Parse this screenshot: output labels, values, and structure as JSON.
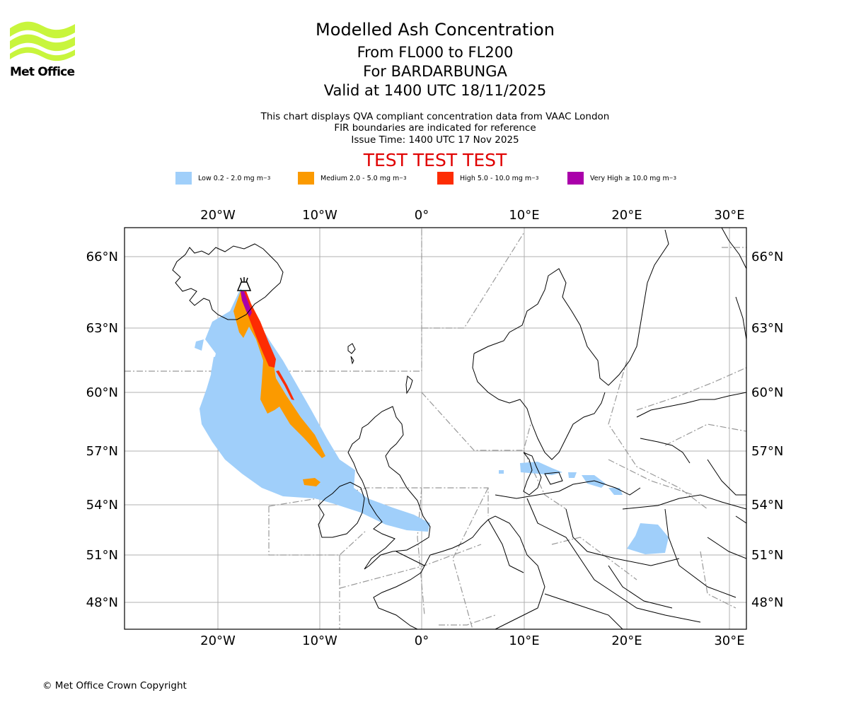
{
  "header": {
    "title": "Modelled Ash Concentration",
    "flight_levels": "From FL000 to FL200",
    "volcano": "For BARDARBUNGA",
    "valid_time": "Valid at 1400 UTC 18/11/2025",
    "info_line1": "This chart displays QVA compliant concentration data from VAAC London",
    "info_line2": "FIR boundaries are indicated for reference",
    "issue_time": "Issue Time: 1400 UTC 17 Nov 2025",
    "test_banner": "TEST TEST TEST"
  },
  "logo": {
    "name": "Met Office"
  },
  "legend": [
    {
      "label": "Low 0.2 - 2.0 mg m",
      "unit_sup": "−3",
      "color": "#a0cffa"
    },
    {
      "label": "Medium 2.0 - 5.0 mg m",
      "unit_sup": "−3",
      "color": "#fb9a00"
    },
    {
      "label": "High 5.0 - 10.0 mg m",
      "unit_sup": "−3",
      "color": "#fd2c03"
    },
    {
      "label": "Very High ≥ 10.0 mg m",
      "unit_sup": "−3",
      "color": "#aa00aa"
    }
  ],
  "map": {
    "lon_labels": [
      "20°W",
      "10°W",
      "0°",
      "10°E",
      "20°E",
      "30°E"
    ],
    "lat_labels": [
      "66°N",
      "63°N",
      "60°N",
      "57°N",
      "54°N",
      "51°N",
      "48°N"
    ]
  },
  "footer": {
    "copyright": "© Met Office Crown Copyright"
  }
}
